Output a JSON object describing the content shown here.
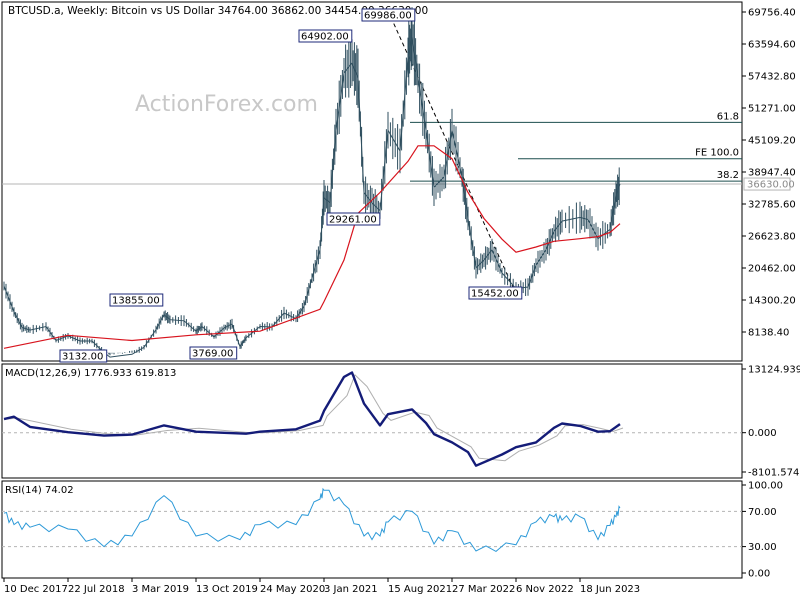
{
  "chart_data": [
    {
      "type": "candlestick",
      "panel": "price",
      "header": "BTCUSD.a, Weekly:  Bitcoin vs US Dollar  34764.00 36862.00 34454.00 36630.00",
      "watermark": "ActionForex.com",
      "y_ticks": [
        "69756.40",
        "63594.60",
        "57432.80",
        "51271.00",
        "45109.20",
        "38947.40",
        "32785.60",
        "26623.80",
        "20462.00",
        "14300.20",
        "8138.40"
      ],
      "y_tick_values": [
        69756.4,
        63594.6,
        57432.8,
        51271.0,
        45109.2,
        38947.4,
        32785.6,
        26623.8,
        20462.0,
        14300.2,
        8138.4
      ],
      "current_price_label": "36630.00",
      "x_ticks": [
        "10 Dec 2017",
        "22 Jul 2018",
        "3 Mar 2019",
        "13 Oct 2019",
        "24 May 2020",
        "3 Jan 2021",
        "15 Aug 2021",
        "27 Mar 2022",
        "6 Nov 2022",
        "18 Jun 2023"
      ],
      "annotations": [
        "69986.00",
        "64902.00",
        "13855.00",
        "29261.00",
        "15452.00",
        "3132.00",
        "3769.00"
      ],
      "levels": [
        {
          "label": "61.8",
          "value": 48500
        },
        {
          "label": "FE 100.0",
          "value": 41500
        },
        {
          "label": "38.2",
          "value": 37200
        }
      ],
      "trendline": {
        "style": "dashed",
        "from": [
          "15 Aug 2021",
          69986
        ],
        "to": [
          "6 Nov 2022",
          15452
        ]
      },
      "series": [
        {
          "kind": "close",
          "points": [
            [
              "10 Dec 2017",
              17000
            ],
            [
              "14 Jan 2018",
              12000
            ],
            [
              "11 Feb 2018",
              9000
            ],
            [
              "11 Mar 2018",
              8500
            ],
            [
              "6 May 2018",
              9200
            ],
            [
              "10 Jun 2018",
              6500
            ],
            [
              "22 Jul 2018",
              7400
            ],
            [
              "2 Sep 2018",
              6400
            ],
            [
              "14 Oct 2018",
              6400
            ],
            [
              "25 Nov 2018",
              4200
            ],
            [
              "16 Dec 2018",
              3300
            ],
            [
              "20 Jan 2019",
              3550
            ],
            [
              "3 Mar 2019",
              3850
            ],
            [
              "14 Apr 2019",
              5200
            ],
            [
              "26 May 2019",
              8600
            ],
            [
              "23 Jun 2019",
              11500
            ],
            [
              "14 Jul 2019",
              10500
            ],
            [
              "1 Sep 2019",
              10300
            ],
            [
              "13 Oct 2019",
              8300
            ],
            [
              "3 Nov 2019",
              9200
            ],
            [
              "15 Dec 2019",
              7200
            ],
            [
              "19 Jan 2020",
              8900
            ],
            [
              "16 Feb 2020",
              9700
            ],
            [
              "15 Mar 2020",
              5300
            ],
            [
              "5 Apr 2020",
              7000
            ],
            [
              "24 May 2020",
              9200
            ],
            [
              "5 Jul 2020",
              9100
            ],
            [
              "16 Aug 2020",
              11800
            ],
            [
              "27 Sep 2020",
              10700
            ],
            [
              "25 Oct 2020",
              13100
            ],
            [
              "22 Nov 2020",
              18500
            ],
            [
              "20 Dec 2020",
              24000
            ],
            [
              "3 Jan 2021",
              34000
            ],
            [
              "24 Jan 2021",
              33000
            ],
            [
              "14 Feb 2021",
              47000
            ],
            [
              "14 Mar 2021",
              58000
            ],
            [
              "11 Apr 2021",
              60000
            ],
            [
              "2 May 2021",
              57000
            ],
            [
              "23 May 2021",
              35000
            ],
            [
              "20 Jun 2021",
              33000
            ],
            [
              "18 Jul 2021",
              31500
            ],
            [
              "15 Aug 2021",
              47000
            ],
            [
              "26 Sep 2021",
              43000
            ],
            [
              "24 Oct 2021",
              61000
            ],
            [
              "7 Nov 2021",
              65000
            ],
            [
              "28 Nov 2021",
              57000
            ],
            [
              "26 Dec 2021",
              47000
            ],
            [
              "23 Jan 2022",
              36000
            ],
            [
              "27 Feb 2022",
              38000
            ],
            [
              "27 Mar 2022",
              47000
            ],
            [
              "1 May 2022",
              38000
            ],
            [
              "22 May 2022",
              30000
            ],
            [
              "19 Jun 2022",
              20500
            ],
            [
              "17 Jul 2022",
              22000
            ],
            [
              "14 Aug 2022",
              24000
            ],
            [
              "18 Sep 2022",
              19500
            ],
            [
              "6 Nov 2022",
              16500
            ],
            [
              "18 Dec 2022",
              16800
            ],
            [
              "15 Jan 2023",
              21000
            ],
            [
              "19 Feb 2023",
              24000
            ],
            [
              "19 Mar 2023",
              27500
            ],
            [
              "16 Apr 2023",
              29500
            ],
            [
              "18 Jun 2023",
              30200
            ],
            [
              "16 Jul 2023",
              29800
            ],
            [
              "20 Aug 2023",
              26100
            ],
            [
              "1 Oct 2023",
              27900
            ],
            [
              "22 Oct 2023",
              34500
            ],
            [
              "5 Nov 2023",
              36630
            ]
          ]
        },
        {
          "kind": "moving-average",
          "points": [
            [
              "10 Dec 2017",
              5000
            ],
            [
              "22 Jul 2018",
              7500
            ],
            [
              "3 Mar 2019",
              6500
            ],
            [
              "13 Oct 2019",
              7600
            ],
            [
              "24 May 2020",
              8300
            ],
            [
              "20 Dec 2020",
              12500
            ],
            [
              "3 Jan 2021",
              14000
            ],
            [
              "14 Mar 2021",
              22000
            ],
            [
              "2 May 2021",
              31000
            ],
            [
              "18 Jul 2021",
              35000
            ],
            [
              "24 Oct 2021",
              41000
            ],
            [
              "28 Nov 2021",
              44000
            ],
            [
              "23 Jan 2022",
              44000
            ],
            [
              "27 Mar 2022",
              41500
            ],
            [
              "22 May 2022",
              35000
            ],
            [
              "17 Jul 2022",
              30000
            ],
            [
              "18 Sep 2022",
              26000
            ],
            [
              "6 Nov 2022",
              23500
            ],
            [
              "15 Jan 2023",
              24500
            ],
            [
              "19 Mar 2023",
              25600
            ],
            [
              "18 Jun 2023",
              26100
            ],
            [
              "20 Aug 2023",
              26500
            ],
            [
              "1 Oct 2023",
              27300
            ],
            [
              "5 Nov 2023",
              29000
            ]
          ]
        }
      ]
    },
    {
      "type": "line",
      "panel": "macd",
      "label": "MACD(12,26,9) 1776.933 619.813",
      "y_ticks": [
        "13124.939",
        "0.000",
        "-8101.574"
      ],
      "y_tick_values": [
        13124.939,
        0,
        -8101.574
      ],
      "series": [
        {
          "kind": "macd",
          "points": [
            [
              "10 Dec 2017",
              2800
            ],
            [
              "14 Jan 2018",
              3300
            ],
            [
              "11 Mar 2018",
              1200
            ],
            [
              "22 Jul 2018",
              100
            ],
            [
              "25 Nov 2018",
              -600
            ],
            [
              "3 Mar 2019",
              -400
            ],
            [
              "23 Jun 2019",
              1500
            ],
            [
              "13 Oct 2019",
              200
            ],
            [
              "5 Apr 2020",
              -200
            ],
            [
              "24 May 2020",
              200
            ],
            [
              "27 Sep 2020",
              700
            ],
            [
              "20 Dec 2020",
              2500
            ],
            [
              "3 Jan 2021",
              4500
            ],
            [
              "14 Mar 2021",
              11500
            ],
            [
              "11 Apr 2021",
              12400
            ],
            [
              "23 May 2021",
              6000
            ],
            [
              "18 Jul 2021",
              1500
            ],
            [
              "15 Aug 2021",
              3800
            ],
            [
              "7 Nov 2021",
              4800
            ],
            [
              "26 Dec 2021",
              2000
            ],
            [
              "23 Jan 2022",
              -300
            ],
            [
              "27 Mar 2022",
              -2000
            ],
            [
              "22 May 2022",
              -4000
            ],
            [
              "19 Jun 2022",
              -6800
            ],
            [
              "18 Sep 2022",
              -4500
            ],
            [
              "6 Nov 2022",
              -3000
            ],
            [
              "15 Jan 2023",
              -2000
            ],
            [
              "19 Mar 2023",
              1000
            ],
            [
              "16 Apr 2023",
              1900
            ],
            [
              "18 Jun 2023",
              1400
            ],
            [
              "20 Aug 2023",
              200
            ],
            [
              "1 Oct 2023",
              300
            ],
            [
              "5 Nov 2023",
              1777
            ]
          ]
        }
      ]
    },
    {
      "type": "line",
      "panel": "rsi",
      "label": "RSI(14) 74.02",
      "y_ticks": [
        "100.00",
        "70.00",
        "30.00",
        "0.00"
      ],
      "y_tick_values": [
        100,
        70,
        30,
        0
      ],
      "series": [
        {
          "kind": "rsi",
          "points": [
            [
              "10 Dec 2017",
              68
            ],
            [
              "14 Jan 2018",
              55
            ],
            [
              "11 Mar 2018",
              52
            ],
            [
              "22 Jul 2018",
              50
            ],
            [
              "25 Nov 2018",
              30
            ],
            [
              "3 Mar 2019",
              42
            ],
            [
              "23 Jun 2019",
              88
            ],
            [
              "13 Oct 2019",
              42
            ],
            [
              "15 Mar 2020",
              38
            ],
            [
              "24 May 2020",
              55
            ],
            [
              "27 Sep 2020",
              55
            ],
            [
              "20 Dec 2020",
              84
            ],
            [
              "3 Jan 2021",
              94
            ],
            [
              "14 Mar 2021",
              78
            ],
            [
              "23 May 2021",
              42
            ],
            [
              "18 Jul 2021",
              42
            ],
            [
              "15 Aug 2021",
              58
            ],
            [
              "7 Nov 2021",
              70
            ],
            [
              "23 Jan 2022",
              33
            ],
            [
              "27 Mar 2022",
              48
            ],
            [
              "19 Jun 2022",
              25
            ],
            [
              "6 Nov 2022",
              32
            ],
            [
              "15 Jan 2023",
              58
            ],
            [
              "19 Mar 2023",
              64
            ],
            [
              "16 Apr 2023",
              60
            ],
            [
              "18 Jun 2023",
              64
            ],
            [
              "20 Aug 2023",
              38
            ],
            [
              "1 Oct 2023",
              54
            ],
            [
              "22 Oct 2023",
              64
            ],
            [
              "5 Nov 2023",
              74.02
            ]
          ]
        }
      ]
    }
  ]
}
